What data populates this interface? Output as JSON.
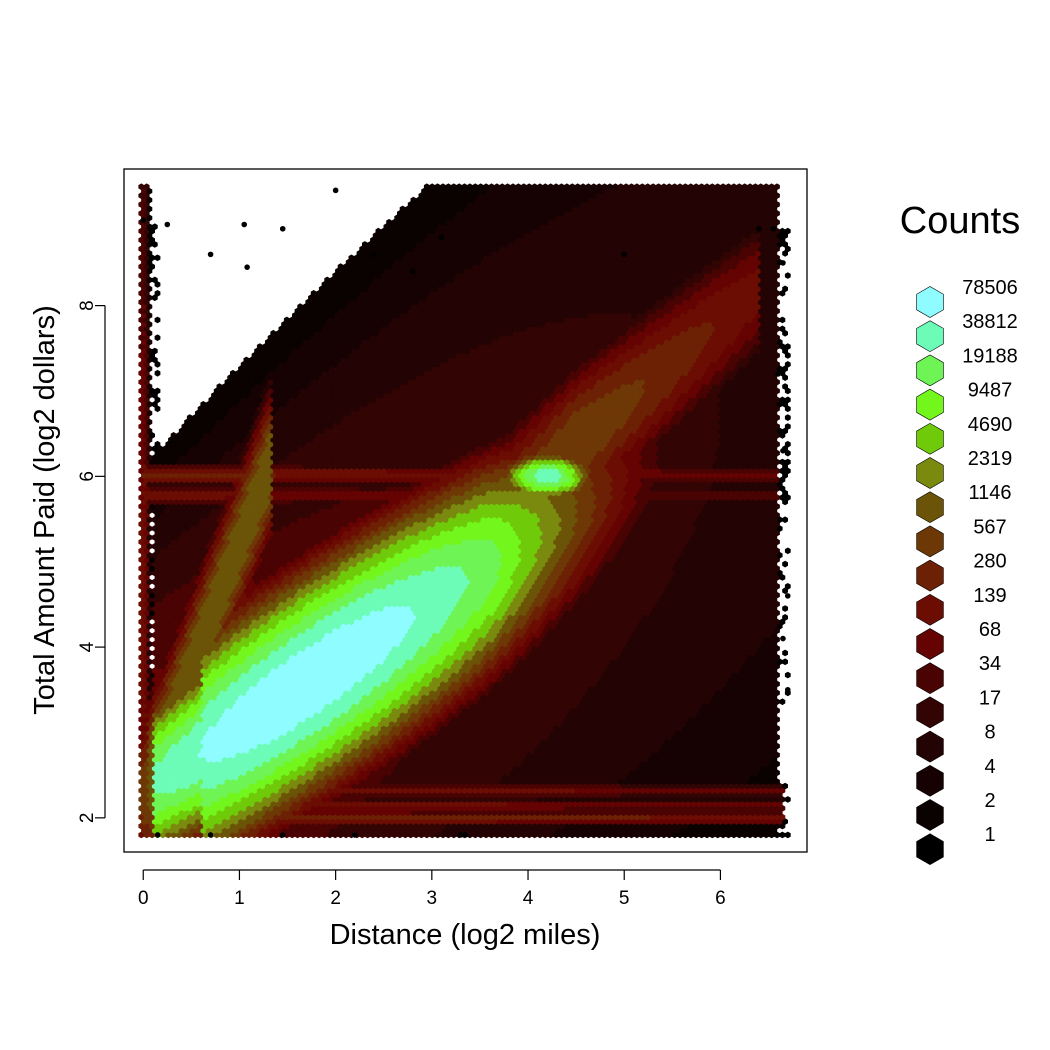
{
  "chart_data": {
    "type": "heatmap",
    "subtype": "hexbin",
    "xlabel": "Distance (log2 miles)",
    "ylabel": "Total Amount Paid (log2 dollars)",
    "xlim": [
      -0.2,
      6.9
    ],
    "ylim": [
      1.6,
      9.6
    ],
    "x_ticks": [
      0,
      1,
      2,
      3,
      4,
      5,
      6
    ],
    "y_ticks": [
      2,
      4,
      6,
      8
    ],
    "grid": false,
    "legend": {
      "title": "Counts",
      "placement": "right",
      "levels": [
        {
          "label": "78506",
          "color": "#8ffdff"
        },
        {
          "label": "38812",
          "color": "#6dfcb8"
        },
        {
          "label": "19188",
          "color": "#6ff455"
        },
        {
          "label": "9487",
          "color": "#72f61c"
        },
        {
          "label": "4690",
          "color": "#6fcb0a"
        },
        {
          "label": "2319",
          "color": "#7a8a0e"
        },
        {
          "label": "1146",
          "color": "#6b5407"
        },
        {
          "label": "567",
          "color": "#6e3806"
        },
        {
          "label": "280",
          "color": "#6d2104"
        },
        {
          "label": "139",
          "color": "#6b0d03"
        },
        {
          "label": "68",
          "color": "#650303"
        },
        {
          "label": "34",
          "color": "#4a0303"
        },
        {
          "label": "17",
          "color": "#330404"
        },
        {
          "label": "8",
          "color": "#230303"
        },
        {
          "label": "4",
          "color": "#160202"
        },
        {
          "label": "2",
          "color": "#0a0101"
        },
        {
          "label": "1",
          "color": "#000000"
        }
      ]
    },
    "density_features": [
      {
        "name": "main-diagonal-band",
        "from": [
          0.15,
          2.4
        ],
        "to": [
          5.3,
          6.2
        ],
        "peak_count_level": "78506",
        "peak_at": [
          1.7,
          3.6
        ]
      },
      {
        "name": "upper-diagonal-band",
        "from": [
          0.1,
          2.6
        ],
        "to": [
          1.2,
          5.8
        ],
        "peak_count_level": "1146"
      },
      {
        "name": "flat-fare-line-upper",
        "y": 6.0,
        "x_range": [
          0,
          6.6
        ],
        "peak_count_level": "19188",
        "peak_at": [
          4.2,
          6.0
        ]
      },
      {
        "name": "flat-fare-line-lower",
        "y": 5.8,
        "x_range": [
          0,
          6.6
        ],
        "peak_count_level": "280"
      },
      {
        "name": "minimum-fare-lines",
        "y": [
          2.0,
          2.15,
          2.3
        ],
        "x_range": [
          0,
          6.6
        ],
        "peak_count_level": "139"
      },
      {
        "name": "zero-distance-column",
        "x": 0,
        "y_range": [
          1.8,
          9.0
        ],
        "peak_count_level": "139"
      }
    ],
    "outliers": [
      [
        2.0,
        9.35
      ],
      [
        0.0,
        9.0
      ],
      [
        0.25,
        8.95
      ],
      [
        1.05,
        8.95
      ],
      [
        1.45,
        8.9
      ],
      [
        3.1,
        8.8
      ],
      [
        0.7,
        8.6
      ],
      [
        2.4,
        8.6
      ],
      [
        1.08,
        8.45
      ],
      [
        2.8,
        8.4
      ],
      [
        6.4,
        8.9
      ],
      [
        6.55,
        8.9
      ],
      [
        6.65,
        8.5
      ],
      [
        6.6,
        7.2
      ],
      [
        6.65,
        6.3
      ],
      [
        6.7,
        4.6
      ],
      [
        6.65,
        4.1
      ],
      [
        6.7,
        3.5
      ],
      [
        3.3,
        1.8
      ],
      [
        3.35,
        1.8
      ],
      [
        1.45,
        1.8
      ],
      [
        0.7,
        1.8
      ],
      [
        2.2,
        1.8
      ],
      [
        0.15,
        1.8
      ],
      [
        5.0,
        8.6
      ]
    ]
  }
}
